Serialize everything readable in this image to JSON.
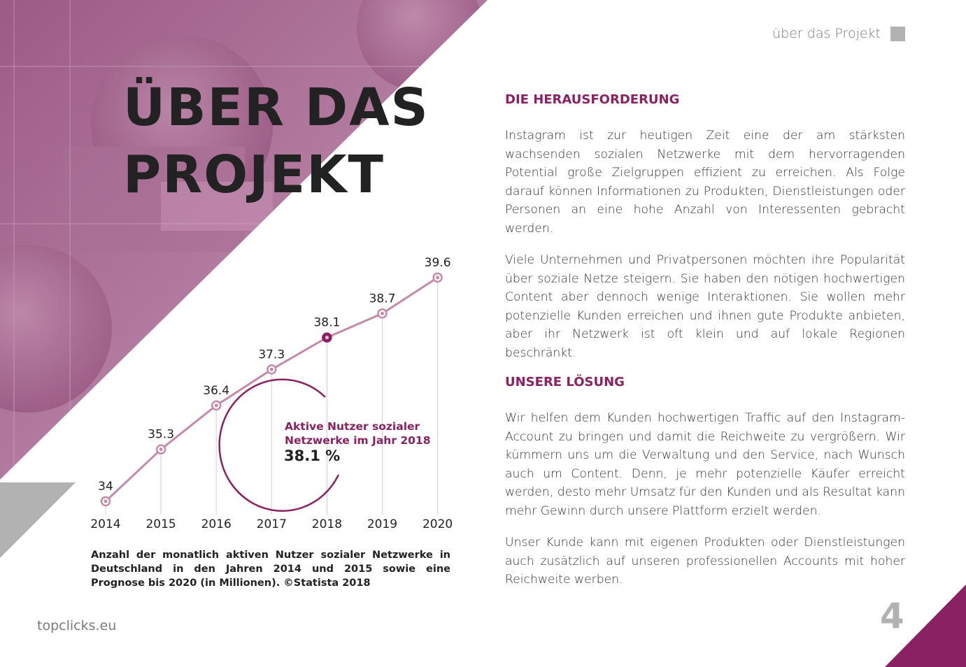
{
  "header": {
    "label": "über das Projekt"
  },
  "title": {
    "line1": "ÜBER DAS",
    "line2": "PROJEKT"
  },
  "sections": {
    "challenge_heading": "DIE HERAUSFORDERUNG",
    "challenge_p1": "Instagram ist zur heutigen Zeit eine der am stärksten wachsenden sozialen Netzwerke mit dem hervorragenden Potential große Zielgruppen effizient zu erreichen. Als Folge darauf können Informationen zu Produkten, Dienstleistungen oder Personen an eine hohe Anzahl von Interessenten gebracht werden.",
    "challenge_p2": "Viele Unternehmen und Privatpersonen möchten ihre Popularität über soziale Netze steigern. Sie haben den nötigen hochwertigen Content aber dennoch wenige Interaktionen. Sie wollen mehr potenzielle Kunden erreichen und ihnen gute Produkte anbieten, aber ihr Netzwerk ist oft klein und auf lokale Regionen beschränkt.",
    "solution_heading": "UNSERE LÖSUNG",
    "solution_p1": "Wir helfen dem Kunden hochwertigen Traffic auf den Instagram-Account zu bringen und damit die Reichweite zu vergrößern. Wir kümmern uns um die Verwaltung und den Service, nach Wunsch auch um Content. Denn, je mehr potenzielle Käufer erreicht werden, desto mehr Umsatz für den Kunden und als Resultat kann mehr Gewinn durch unsere Plattform erzielt werden.",
    "solution_p2": "Unser Kunde kann mit eigenen Produkten oder Dienstleistungen auch zusätzlich auf unseren professionellen Accounts mit hoher Reichweite werben."
  },
  "highlight": {
    "label": "Aktive Nutzer sozialer Netzwerke im Jahr 2018",
    "value": "38.1 %"
  },
  "caption": "Anzahl der monatlich aktiven Nutzer sozialer Netzwerke in Deutschland in den Jahren 2014 und 2015 sowie eine Prognose bis 2020 (in Millionen). ©Statista 2018",
  "footer": {
    "url": "topclicks.eu",
    "page_number": "4"
  },
  "colors": {
    "accent": "#8a2162",
    "line": "#c48aaa",
    "gray": "#b2b2b2"
  },
  "chart_data": {
    "type": "line",
    "categories": [
      "2014",
      "2015",
      "2016",
      "2017",
      "2018",
      "2019",
      "2020"
    ],
    "values": [
      34,
      35.3,
      36.4,
      37.3,
      38.1,
      38.7,
      39.6
    ],
    "value_labels": [
      "34",
      "35.3",
      "36.4",
      "37.3",
      "38.1",
      "38.7",
      "39.6"
    ],
    "highlighted_category": "2018",
    "title": "",
    "xlabel": "",
    "ylabel": "",
    "ylim": [
      34,
      39.6
    ],
    "grid": false
  }
}
